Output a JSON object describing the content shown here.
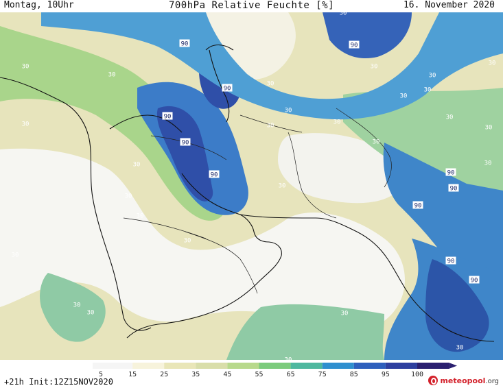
{
  "header": {
    "left": "Montag, 10Uhr",
    "title": "700hPa Relative Feuchte [%]",
    "right": "16. November 2020"
  },
  "map": {
    "contour_labels": [
      "90",
      "90",
      "90",
      "90",
      "90",
      "90",
      "90",
      "90",
      "90",
      "90",
      "90",
      "30",
      "30",
      "30",
      "30",
      "30",
      "30",
      "30",
      "30",
      "30",
      "30",
      "30",
      "30",
      "30",
      "30",
      "30",
      "30",
      "30",
      "30",
      "30",
      "30",
      "30",
      "30",
      "30",
      "30",
      "30",
      "30",
      "30",
      "30"
    ]
  },
  "colorbar": {
    "ticks": [
      "5",
      "15",
      "25",
      "35",
      "45",
      "55",
      "65",
      "75",
      "85",
      "95",
      "100"
    ],
    "colors": [
      "#f5f5f5",
      "#f7f3dc",
      "#e9e6b8",
      "#d9deaa",
      "#b8d98c",
      "#7ccb7d",
      "#4fb89f",
      "#2f8fcf",
      "#2e5fbd",
      "#2e3f9f",
      "#2a1f6f"
    ]
  },
  "footer": {
    "left": "+21h Init:12Z15NOV2020",
    "logo_main": "meteopool",
    "logo_tld": ".org"
  }
}
